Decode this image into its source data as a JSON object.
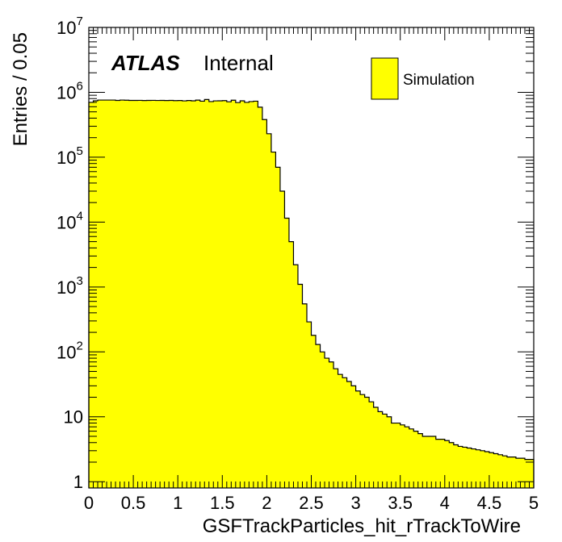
{
  "chart_data": {
    "type": "bar",
    "style": "histogram",
    "xlabel": "GSFTrackParticles_hit_rTrackToWire",
    "ylabel": "Entries / 0.05",
    "xlim": [
      0,
      5
    ],
    "ylim": [
      0.8,
      10000000
    ],
    "yscale": "log",
    "bin_width": 0.05,
    "x_ticks": [
      "0",
      "0.5",
      "1",
      "1.5",
      "2",
      "2.5",
      "3",
      "3.5",
      "4",
      "4.5",
      "5"
    ],
    "y_ticks": [
      {
        "base": "1",
        "exp": ""
      },
      {
        "base": "10",
        "exp": ""
      },
      {
        "base": "10",
        "exp": "2"
      },
      {
        "base": "10",
        "exp": "3"
      },
      {
        "base": "10",
        "exp": "4"
      },
      {
        "base": "10",
        "exp": "5"
      },
      {
        "base": "10",
        "exp": "6"
      },
      {
        "base": "10",
        "exp": "7"
      }
    ],
    "experiment_label": "ATLAS",
    "status_label": "Internal",
    "fill_color": "#ffff00",
    "line_color": "#000000",
    "legend_position": "top-right",
    "grid": false,
    "series": [
      {
        "name": "Simulation",
        "values": [
          700000,
          740000,
          760000,
          760000,
          760000,
          760000,
          750000,
          760000,
          755000,
          750000,
          750000,
          752000,
          748000,
          750000,
          752000,
          749000,
          750000,
          748000,
          750000,
          745000,
          748000,
          738000,
          748000,
          740000,
          758000,
          730000,
          775000,
          720000,
          738000,
          740000,
          745000,
          715000,
          755000,
          695000,
          740000,
          700000,
          720000,
          730000,
          590000,
          380000,
          230000,
          120000,
          70000,
          30000,
          11500,
          5000,
          2200,
          1100,
          550,
          290,
          180,
          130,
          100,
          80,
          70,
          55,
          45,
          40,
          35,
          30,
          25,
          22,
          20,
          17,
          14,
          12,
          11,
          10,
          8,
          8,
          7.5,
          7,
          6.5,
          6,
          5.5,
          5,
          5,
          5,
          4.5,
          4.5,
          4.3,
          4,
          3.7,
          3.5,
          3.4,
          3.3,
          3.2,
          3.1,
          3,
          2.9,
          2.8,
          2.7,
          2.6,
          2.5,
          2.4,
          2.4,
          2.3,
          2.3,
          2.2,
          2.2
        ]
      }
    ]
  }
}
